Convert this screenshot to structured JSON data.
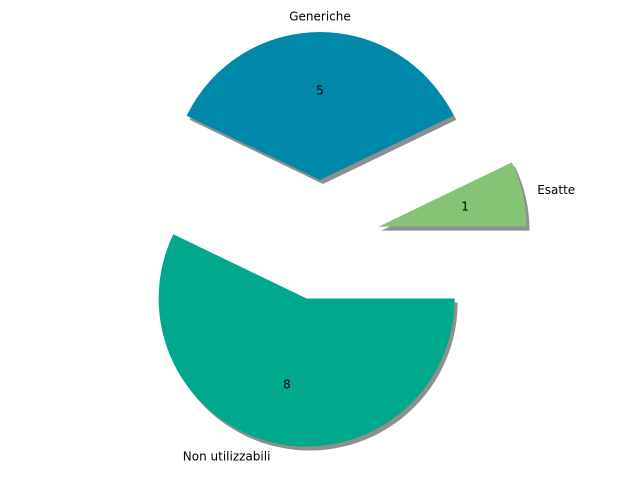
{
  "chart_data": {
    "type": "pie",
    "categories": [
      "Esatte",
      "Generiche",
      "Non utilizzabili"
    ],
    "values": [
      1,
      5,
      8
    ],
    "colors": [
      "#84c474",
      "#0088aa",
      "#00a88c"
    ],
    "shadow": true
  }
}
